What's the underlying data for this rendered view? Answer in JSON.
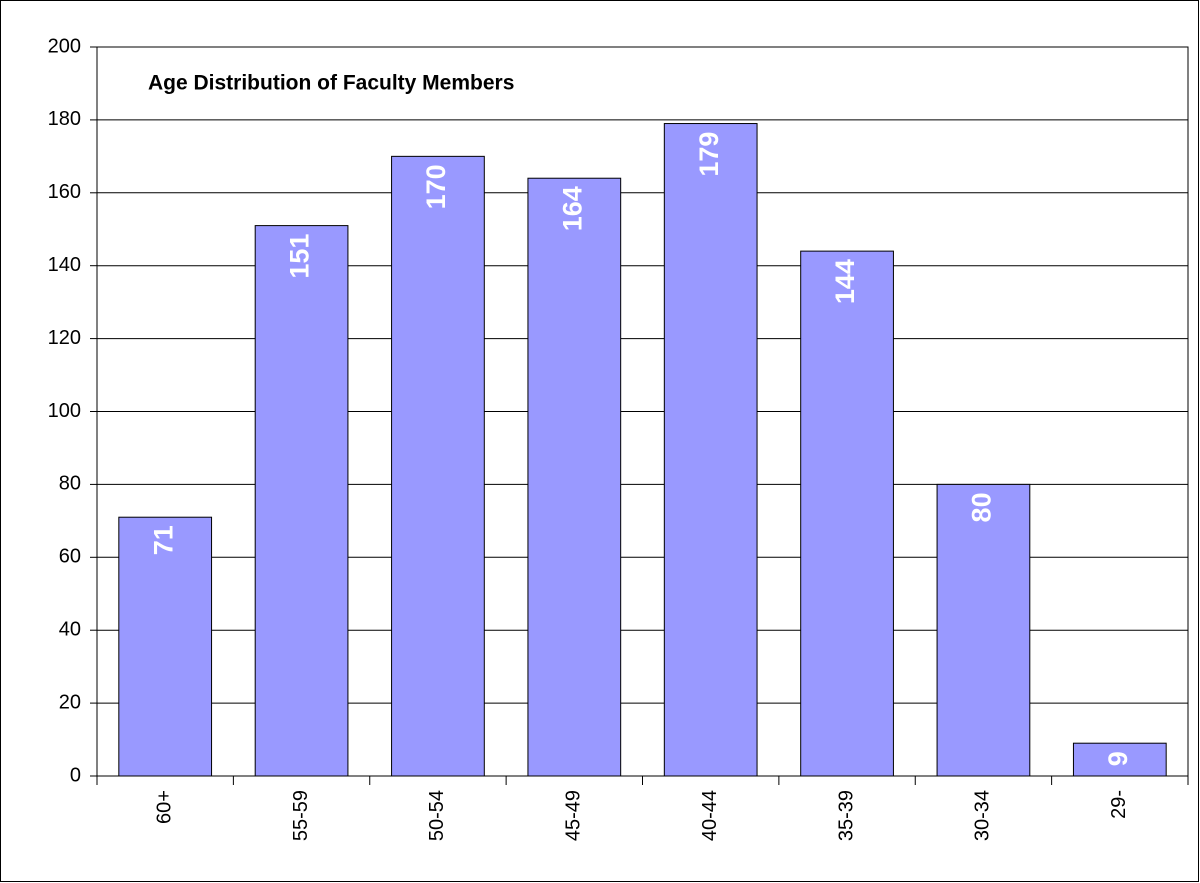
{
  "chart_data": {
    "type": "bar",
    "title": "Age Distribution of  Faculty Members",
    "categories": [
      "60+",
      "55-59",
      "50-54",
      "45-49",
      "40-44",
      "35-39",
      "30-34",
      "29-"
    ],
    "values": [
      71,
      151,
      170,
      164,
      179,
      144,
      80,
      9
    ],
    "color": "#9999ff",
    "ylim": [
      0,
      200
    ],
    "yticks": [
      0,
      20,
      40,
      60,
      80,
      100,
      120,
      140,
      160,
      180,
      200
    ],
    "grid": true
  }
}
